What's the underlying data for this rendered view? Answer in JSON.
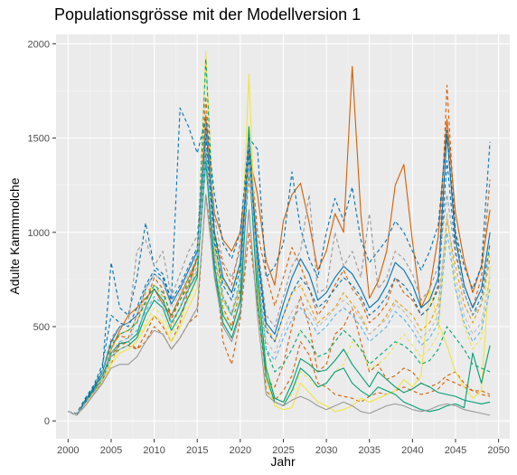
{
  "chart_data": {
    "type": "line",
    "title": "Populationsgrösse mit der Modellversion 1",
    "xlabel": "Jahr",
    "ylabel": "Adulte Kammmolche",
    "xlim": [
      1998.6,
      2051.3
    ],
    "ylim": [
      -95,
      2050
    ],
    "x_ticks": [
      2000,
      2005,
      2010,
      2015,
      2020,
      2025,
      2030,
      2035,
      2040,
      2045,
      2050
    ],
    "y_ticks": [
      0,
      500,
      1000,
      1500,
      2000
    ],
    "grid": true,
    "legend": "none",
    "panel_color": "#EBEBEB",
    "x": [
      2000,
      2001,
      2002,
      2003,
      2004,
      2005,
      2006,
      2007,
      2008,
      2009,
      2010,
      2011,
      2012,
      2013,
      2014,
      2015,
      2016,
      2017,
      2018,
      2019,
      2020,
      2021,
      2022,
      2023,
      2024,
      2025,
      2026,
      2027,
      2028,
      2029,
      2030,
      2031,
      2032,
      2033,
      2034,
      2035,
      2036,
      2037,
      2038,
      2039,
      2040,
      2041,
      2042,
      2043,
      2044,
      2045,
      2046,
      2047,
      2048,
      2049
    ],
    "series": [
      {
        "color": "#D55E00",
        "dash": "solid",
        "values": [
          50,
          30,
          100,
          150,
          200,
          380,
          480,
          560,
          600,
          650,
          700,
          620,
          560,
          660,
          760,
          860,
          1620,
          1100,
          960,
          900,
          1000,
          1420,
          1200,
          850,
          720,
          1060,
          1200,
          1260,
          1050,
          800,
          900,
          1100,
          1000,
          1880,
          1100,
          650,
          740,
          900,
          1250,
          1360,
          950,
          600,
          700,
          980,
          1600,
          1100,
          850,
          680,
          820,
          1120
        ]
      },
      {
        "color": "#D55E00",
        "dash": "dashed",
        "values": [
          50,
          40,
          120,
          180,
          260,
          420,
          450,
          440,
          560,
          620,
          760,
          700,
          540,
          640,
          720,
          860,
          1720,
          1000,
          820,
          720,
          940,
          1520,
          1000,
          780,
          610,
          760,
          920,
          820,
          700,
          560,
          620,
          720,
          800,
          700,
          640,
          520,
          560,
          620,
          760,
          680,
          640,
          560,
          600,
          720,
          1780,
          1000,
          720,
          600,
          760,
          1280
        ]
      },
      {
        "color": "#D55E00",
        "dash": "dashed",
        "values": [
          50,
          30,
          100,
          160,
          240,
          350,
          400,
          420,
          380,
          460,
          560,
          500,
          420,
          520,
          700,
          880,
          1480,
          900,
          600,
          500,
          700,
          1300,
          860,
          160,
          110,
          160,
          240,
          420,
          350,
          200,
          180,
          140,
          130,
          120,
          100,
          130,
          150,
          140,
          160,
          180,
          160,
          140,
          150,
          170,
          220,
          200,
          180,
          160,
          160,
          140
        ]
      },
      {
        "color": "#D55E00",
        "dash": "dashed",
        "values": [
          50,
          40,
          90,
          150,
          220,
          300,
          420,
          400,
          380,
          420,
          500,
          460,
          380,
          440,
          520,
          560,
          1200,
          860,
          420,
          300,
          540,
          1000,
          620,
          220,
          180,
          300,
          500,
          660,
          500,
          260,
          300,
          460,
          500,
          600,
          420,
          260,
          300,
          220,
          240,
          280,
          260,
          200,
          180,
          200,
          240,
          260,
          200,
          160,
          140,
          130
        ]
      },
      {
        "color": "#E69F00",
        "dash": "dashed",
        "values": [
          50,
          30,
          110,
          160,
          220,
          380,
          460,
          480,
          520,
          680,
          720,
          660,
          500,
          600,
          720,
          820,
          1360,
          900,
          740,
          680,
          820,
          1320,
          900,
          500,
          420,
          560,
          680,
          720,
          620,
          520,
          560,
          600,
          680,
          620,
          560,
          460,
          500,
          560,
          640,
          600,
          560,
          480,
          520,
          620,
          1060,
          820,
          620,
          520,
          620,
          900
        ]
      },
      {
        "color": "#F0E442",
        "dash": "solid",
        "values": [
          50,
          30,
          80,
          140,
          200,
          300,
          360,
          380,
          420,
          500,
          560,
          520,
          420,
          500,
          600,
          700,
          1960,
          960,
          640,
          560,
          720,
          1840,
          700,
          220,
          80,
          60,
          70,
          200,
          150,
          100,
          80,
          50,
          60,
          80,
          120,
          100,
          120,
          140,
          160,
          220,
          180,
          240,
          700,
          520,
          400,
          260,
          180,
          120,
          160,
          820
        ]
      },
      {
        "color": "#F0E442",
        "dash": "dashed",
        "values": [
          50,
          40,
          90,
          150,
          210,
          320,
          380,
          400,
          440,
          520,
          600,
          560,
          460,
          540,
          640,
          760,
          1600,
          900,
          580,
          480,
          640,
          1500,
          740,
          300,
          120,
          100,
          140,
          260,
          220,
          180,
          200,
          260,
          300,
          420,
          380,
          280,
          300,
          340,
          400,
          460,
          400,
          340,
          380,
          460,
          1100,
          700,
          500,
          380,
          440,
          960
        ]
      },
      {
        "color": "#009E73",
        "dash": "solid",
        "values": [
          50,
          30,
          100,
          160,
          220,
          340,
          380,
          400,
          440,
          560,
          640,
          600,
          480,
          560,
          660,
          760,
          1440,
          820,
          560,
          480,
          640,
          1560,
          760,
          280,
          120,
          100,
          200,
          330,
          300,
          260,
          270,
          320,
          380,
          300,
          240,
          180,
          260,
          220,
          180,
          150,
          170,
          200,
          180,
          150,
          140,
          130,
          110,
          100,
          90,
          100
        ]
      },
      {
        "color": "#009E73",
        "dash": "solid",
        "values": [
          50,
          30,
          110,
          170,
          240,
          360,
          410,
          420,
          460,
          600,
          700,
          640,
          520,
          600,
          700,
          780,
          1380,
          780,
          520,
          440,
          580,
          1400,
          640,
          240,
          100,
          80,
          160,
          280,
          240,
          180,
          200,
          260,
          280,
          200,
          160,
          130,
          180,
          160,
          140,
          100,
          80,
          60,
          50,
          60,
          80,
          90,
          70,
          360,
          200,
          400
        ]
      },
      {
        "color": "#00A86B",
        "dash": "dashed",
        "values": [
          50,
          40,
          120,
          180,
          260,
          400,
          460,
          480,
          520,
          640,
          720,
          680,
          560,
          640,
          740,
          860,
          1920,
          980,
          660,
          560,
          760,
          1520,
          820,
          380,
          260,
          300,
          380,
          480,
          420,
          340,
          360,
          420,
          480,
          440,
          380,
          300,
          340,
          380,
          420,
          400,
          360,
          300,
          320,
          380,
          500,
          440,
          380,
          300,
          280,
          260
        ]
      },
      {
        "color": "#0072B2",
        "dash": "solid",
        "values": [
          50,
          30,
          100,
          170,
          260,
          420,
          500,
          520,
          560,
          700,
          780,
          740,
          620,
          700,
          800,
          900,
          1560,
          1000,
          760,
          680,
          840,
          1460,
          900,
          520,
          460,
          620,
          760,
          860,
          780,
          640,
          680,
          760,
          820,
          780,
          700,
          600,
          640,
          720,
          840,
          800,
          720,
          600,
          640,
          760,
          1520,
          960,
          720,
          600,
          700,
          1000
        ]
      },
      {
        "color": "#0072B2",
        "dash": "dashed",
        "values": [
          50,
          30,
          110,
          180,
          280,
          840,
          600,
          560,
          760,
          1050,
          820,
          780,
          640,
          1660,
          1560,
          1420,
          1600,
          1200,
          940,
          860,
          1000,
          1500,
          1440,
          760,
          820,
          940,
          1320,
          1020,
          860,
          760,
          1000,
          1180,
          1060,
          1240,
          960,
          840,
          900,
          960,
          1060,
          1000,
          900,
          800,
          900,
          1040,
          1540,
          1000,
          820,
          700,
          820,
          1480
        ]
      },
      {
        "color": "#0072B2",
        "dash": "dashed",
        "values": [
          50,
          40,
          120,
          190,
          300,
          560,
          520,
          500,
          600,
          720,
          800,
          760,
          640,
          720,
          820,
          920,
          1500,
          940,
          720,
          640,
          800,
          1400,
          860,
          480,
          420,
          560,
          680,
          760,
          700,
          600,
          640,
          700,
          760,
          720,
          660,
          560,
          600,
          660,
          760,
          720,
          660,
          560,
          600,
          700,
          1380,
          900,
          680,
          560,
          660,
          940
        ]
      },
      {
        "color": "#56B4E9",
        "dash": "dashed",
        "values": [
          50,
          30,
          90,
          150,
          220,
          360,
          420,
          440,
          480,
          580,
          660,
          620,
          520,
          600,
          700,
          800,
          1400,
          860,
          640,
          560,
          720,
          1360,
          800,
          380,
          320,
          440,
          540,
          600,
          540,
          460,
          500,
          560,
          600,
          560,
          500,
          420,
          460,
          500,
          580,
          540,
          480,
          400,
          440,
          520,
          1000,
          700,
          520,
          420,
          480,
          700
        ]
      },
      {
        "color": "#999999",
        "dash": "solid",
        "values": [
          50,
          30,
          80,
          140,
          200,
          280,
          300,
          300,
          340,
          420,
          480,
          460,
          380,
          440,
          520,
          600,
          1200,
          760,
          500,
          420,
          560,
          1120,
          560,
          140,
          100,
          80,
          110,
          130,
          110,
          80,
          60,
          80,
          100,
          80,
          50,
          40,
          60,
          80,
          90,
          80,
          60,
          50,
          60,
          80,
          90,
          80,
          60,
          50,
          40,
          30
        ]
      },
      {
        "color": "#999999",
        "dash": "dashed",
        "values": [
          50,
          40,
          100,
          160,
          260,
          440,
          500,
          520,
          900,
          960,
          820,
          900,
          660,
          780,
          900,
          980,
          1580,
          1080,
          840,
          760,
          900,
          1480,
          940,
          560,
          500,
          660,
          820,
          900,
          1200,
          680,
          700,
          1000,
          820,
          900,
          760,
          1100,
          700,
          760,
          900,
          860,
          780,
          640,
          700,
          820,
          1200,
          880,
          680,
          560,
          620,
          860
        ]
      },
      {
        "color": "#BBBBBB",
        "dash": "dashed",
        "values": [
          50,
          30,
          90,
          150,
          220,
          340,
          380,
          400,
          560,
          700,
          780,
          740,
          600,
          680,
          780,
          880,
          1460,
          880,
          660,
          580,
          740,
          1380,
          820,
          420,
          360,
          480,
          580,
          640,
          580,
          500,
          540,
          600,
          640,
          600,
          540,
          460,
          500,
          540,
          620,
          580,
          520,
          440,
          480,
          560,
          1100,
          760,
          560,
          460,
          520,
          760
        ]
      }
    ]
  }
}
